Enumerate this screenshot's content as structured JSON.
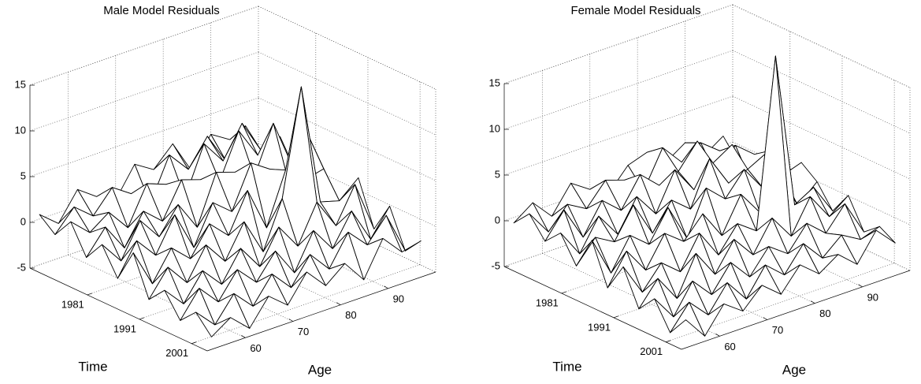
{
  "chart_data": [
    {
      "type": "surface",
      "title": "Male Model Residuals",
      "xlabel": "Age",
      "ylabel": "Time",
      "x": [
        54,
        58,
        62,
        66,
        70,
        74,
        78,
        82,
        86,
        90,
        94,
        98
      ],
      "y": [
        1970,
        1973,
        1976,
        1979,
        1982,
        1985,
        1988,
        1991,
        1994,
        1997,
        2000,
        2003
      ],
      "z": [
        [
          0.5,
          -1.2,
          1.8,
          0.3,
          -0.8,
          2.4,
          1.1,
          3.2,
          -0.5,
          2.8,
          1.5,
          0.9
        ],
        [
          -0.9,
          1.4,
          -0.3,
          2.1,
          0.7,
          -1.1,
          3.5,
          1.2,
          4.1,
          0.6,
          3.8,
          -0.7
        ],
        [
          1.3,
          -0.6,
          0.9,
          -1.5,
          2.6,
          1.8,
          -0.4,
          4.8,
          2.2,
          5.6,
          1.9,
          2.7
        ],
        [
          -1.8,
          0.8,
          -2.2,
          1.1,
          -0.7,
          3.1,
          2.4,
          1.5,
          6.3,
          2.9,
          4.2,
          -0.3
        ],
        [
          0.4,
          -2.1,
          1.6,
          -0.9,
          1.9,
          -1.3,
          4.0,
          3.3,
          2.1,
          7.2,
          1.8,
          3.5
        ],
        [
          -2.5,
          0.9,
          -1.4,
          2.3,
          -2.0,
          2.2,
          0.5,
          5.1,
          3.7,
          1.4,
          6.0,
          0.8
        ],
        [
          1.1,
          -3.0,
          0.2,
          -1.7,
          1.4,
          -0.6,
          3.6,
          -1.2,
          4.4,
          2.6,
          3.1,
          -1.9
        ],
        [
          -3.2,
          -0.4,
          -2.8,
          0.6,
          -1.9,
          1.7,
          -2.3,
          2.8,
          14.3,
          1.0,
          0.4,
          2.2
        ],
        [
          -1.4,
          -3.6,
          -0.7,
          -2.9,
          0.3,
          -2.4,
          1.2,
          -1.6,
          2.5,
          -0.8,
          3.0,
          -2.6
        ],
        [
          -3.9,
          -1.1,
          -3.3,
          -0.5,
          -2.6,
          0.1,
          -3.0,
          0.9,
          -1.8,
          1.6,
          -2.2,
          0.7
        ],
        [
          -2.2,
          -4.3,
          -1.6,
          -3.7,
          -0.9,
          -3.1,
          -0.2,
          -2.5,
          0.8,
          -1.3,
          1.2,
          -3.4
        ],
        [
          -4.1,
          -2.7,
          -4.6,
          -1.8,
          -3.5,
          -0.6,
          -2.8,
          -1.1,
          -3.6,
          0.2,
          -2.0,
          -1.5
        ]
      ],
      "xlim": [
        52,
        100
      ],
      "ylim": [
        1970,
        2004
      ],
      "zlim": [
        -5,
        15
      ],
      "xticks": [
        60,
        70,
        80,
        90
      ],
      "yticks": [
        1981,
        1991,
        2001
      ],
      "zticks": [
        -5,
        0,
        5,
        10,
        15
      ],
      "grid": true,
      "color": "#000000"
    },
    {
      "type": "surface",
      "title": "Female Model Residuals",
      "xlabel": "Age",
      "ylabel": "Time",
      "x": [
        54,
        58,
        62,
        66,
        70,
        74,
        78,
        82,
        86,
        90,
        94,
        98
      ],
      "y": [
        1970,
        1973,
        1976,
        1979,
        1982,
        1985,
        1988,
        1991,
        1994,
        1997,
        2000,
        2003
      ],
      "z": [
        [
          -0.6,
          0.9,
          -1.3,
          1.6,
          0.2,
          -0.9,
          1.4,
          2.1,
          0.3,
          1.7,
          -0.4,
          1.0
        ],
        [
          1.2,
          -1.5,
          0.8,
          -0.4,
          2.0,
          1.3,
          -0.6,
          3.4,
          1.1,
          2.5,
          0.9,
          -1.2
        ],
        [
          -1.0,
          1.7,
          -2.0,
          1.3,
          -0.5,
          2.7,
          0.8,
          1.6,
          4.2,
          -0.3,
          2.3,
          0.6
        ],
        [
          0.7,
          -2.3,
          1.1,
          -1.6,
          1.8,
          -0.8,
          3.3,
          0.4,
          2.6,
          3.9,
          -0.9,
          1.8
        ],
        [
          -2.1,
          0.3,
          -0.9,
          2.4,
          -1.4,
          1.5,
          -0.2,
          4.6,
          1.2,
          2.0,
          3.1,
          -0.5
        ],
        [
          1.5,
          -2.8,
          0.6,
          -1.1,
          2.2,
          -1.9,
          2.9,
          1.0,
          3.5,
          0.7,
          1.4,
          2.1
        ],
        [
          -2.9,
          0.4,
          -2.4,
          0.9,
          -0.7,
          1.6,
          -1.5,
          2.3,
          -0.4,
          3.0,
          -1.1,
          0.8
        ],
        [
          0.2,
          -3.3,
          -0.8,
          -2.5,
          1.0,
          -2.1,
          0.6,
          -0.9,
          17.5,
          0.5,
          1.7,
          -1.6
        ],
        [
          -3.6,
          -1.0,
          -3.9,
          0.3,
          -2.7,
          0.4,
          -2.0,
          1.3,
          -1.4,
          2.2,
          -0.7,
          0.9
        ],
        [
          -1.7,
          -4.4,
          -1.2,
          -3.4,
          -0.6,
          -2.9,
          -0.3,
          -1.8,
          0.8,
          -1.0,
          1.5,
          -2.3
        ],
        [
          -4.6,
          -2.0,
          -4.1,
          -1.3,
          -3.8,
          -0.8,
          -2.6,
          0.1,
          -2.2,
          -0.4,
          -1.6,
          -0.9
        ],
        [
          -2.4,
          -4.9,
          -2.1,
          -3.6,
          -1.5,
          -3.2,
          -0.7,
          -2.4,
          -1.0,
          -2.8,
          0.2,
          -1.9
        ]
      ],
      "xlim": [
        52,
        100
      ],
      "ylim": [
        1970,
        2004
      ],
      "zlim": [
        -5,
        15
      ],
      "xticks": [
        60,
        70,
        80,
        90
      ],
      "yticks": [
        1981,
        1991,
        2001
      ],
      "zticks": [
        -5,
        0,
        5,
        10,
        15
      ],
      "grid": true,
      "color": "#000000"
    }
  ]
}
